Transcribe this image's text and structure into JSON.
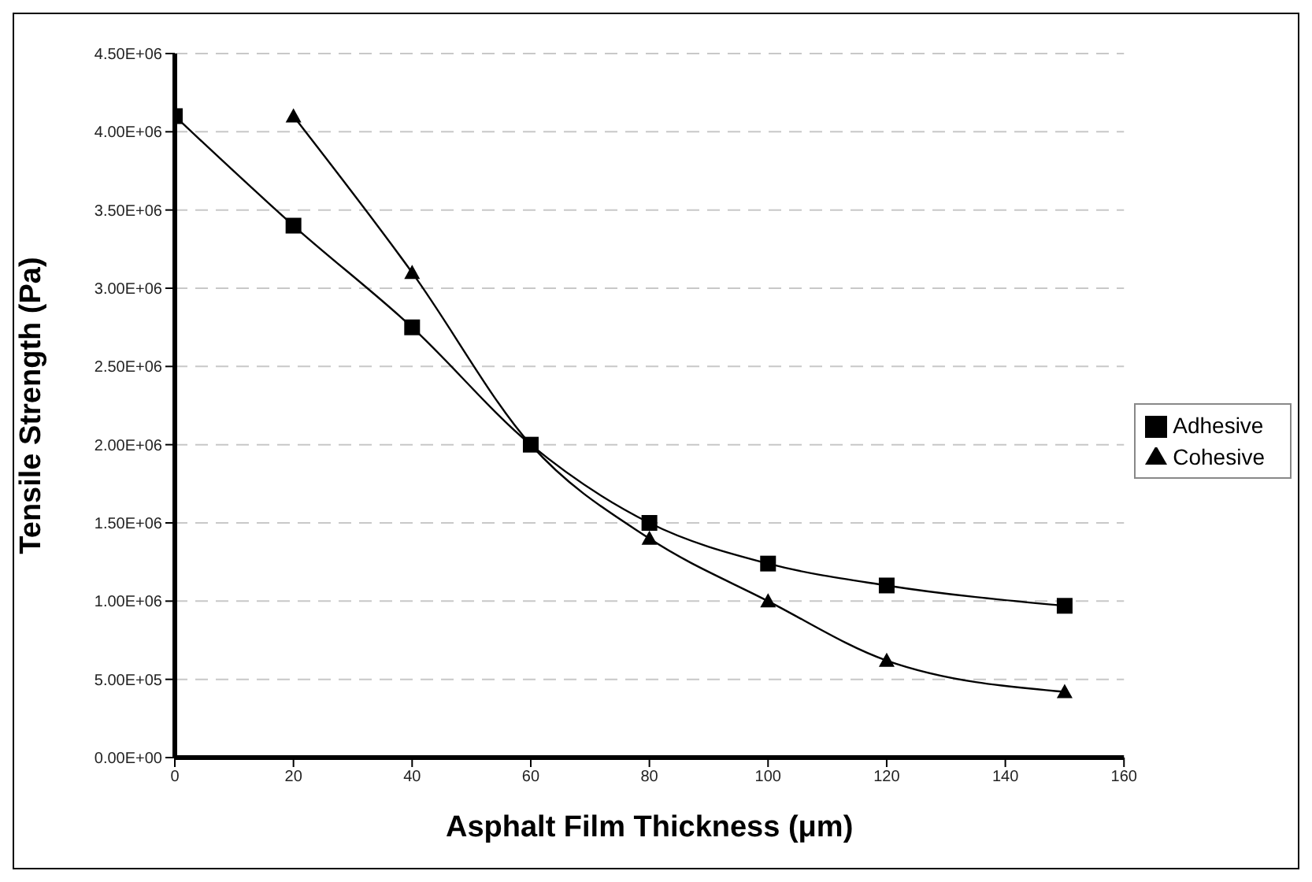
{
  "chart_data": {
    "type": "line",
    "xlabel": "Asphalt Film Thickness (μm)",
    "ylabel": "Tensile Strength (Pa)",
    "xlim": [
      0,
      160
    ],
    "xticks": [
      0,
      20,
      40,
      60,
      80,
      100,
      120,
      140,
      160
    ],
    "ylim": [
      0,
      4500000
    ],
    "yticks": [
      {
        "value": 0,
        "label": "0.00E+00"
      },
      {
        "value": 500000,
        "label": "5.00E+05"
      },
      {
        "value": 1000000,
        "label": "1.00E+06"
      },
      {
        "value": 1500000,
        "label": "1.50E+06"
      },
      {
        "value": 2000000,
        "label": "2.00E+06"
      },
      {
        "value": 2500000,
        "label": "2.50E+06"
      },
      {
        "value": 3000000,
        "label": "3.00E+06"
      },
      {
        "value": 3500000,
        "label": "3.50E+06"
      },
      {
        "value": 4000000,
        "label": "4.00E+06"
      },
      {
        "value": 4500000,
        "label": "4.50E+06"
      }
    ],
    "grid": "y",
    "legend": "right",
    "line_style": "solid",
    "series": [
      {
        "name": "Cohesive",
        "color": "#000000",
        "marker": "triangle",
        "x": [
          20,
          40,
          60,
          80,
          100,
          120,
          150
        ],
        "values": [
          4100000,
          3100000,
          2000000,
          1400000,
          1000000,
          620000,
          420000
        ]
      },
      {
        "name": "Adhesive",
        "color": "#000000",
        "marker": "square",
        "x": [
          0,
          20,
          40,
          60,
          80,
          100,
          120,
          150
        ],
        "values": [
          4100000,
          3400000,
          2750000,
          2000000,
          1500000,
          1240000,
          1100000,
          970000
        ]
      }
    ]
  }
}
